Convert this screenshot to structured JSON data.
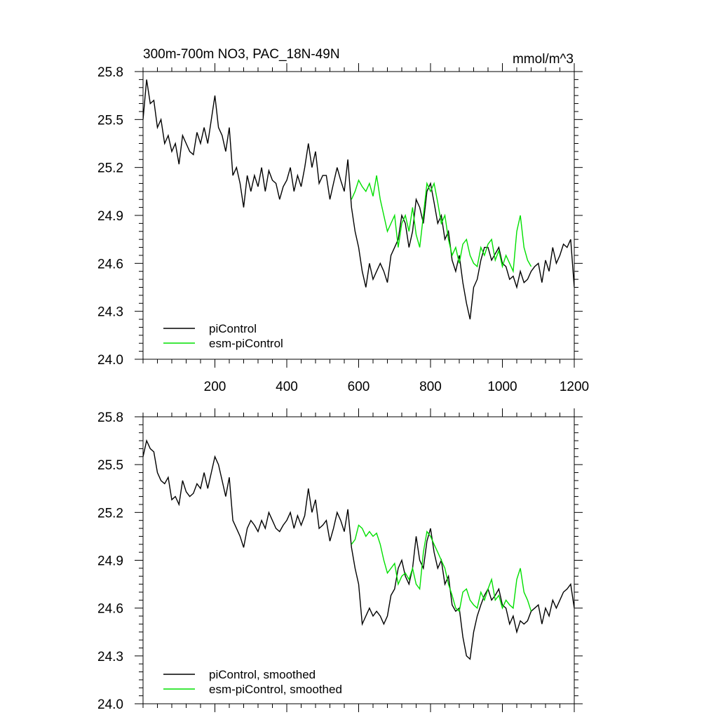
{
  "page": {
    "title": "300m-700m NO3, PAC_18N-49N",
    "units": "mmol/m^3"
  },
  "colors": {
    "picontrol": "#000000",
    "esm_picontrol": "#00e000",
    "axis": "#000000",
    "background": "#ffffff"
  },
  "chart_data": [
    {
      "type": "line",
      "title": "300m-700m NO3, PAC_18N-49N",
      "units_label": "mmol/m^3",
      "xlabel": "",
      "ylabel": "",
      "xlim": [
        0,
        1200
      ],
      "ylim": [
        24.0,
        25.8
      ],
      "x_ticks": [
        200,
        400,
        600,
        800,
        1000,
        1200
      ],
      "x_tick_labels": [
        "200",
        "400",
        "600",
        "800",
        "1000",
        "1200"
      ],
      "y_ticks": [
        24.0,
        24.3,
        24.6,
        24.9,
        25.2,
        25.5,
        25.8
      ],
      "y_tick_labels": [
        "24.0",
        "24.3",
        "24.6",
        "24.9",
        "25.2",
        "25.5",
        "25.8"
      ],
      "grid": false,
      "legend_position": "bottom-left",
      "series": [
        {
          "name": "piControl",
          "color": "#000000",
          "x": [
            0,
            10,
            20,
            30,
            40,
            50,
            60,
            70,
            80,
            90,
            100,
            110,
            120,
            130,
            140,
            150,
            160,
            170,
            180,
            190,
            200,
            210,
            220,
            230,
            240,
            250,
            260,
            270,
            280,
            290,
            300,
            310,
            320,
            330,
            340,
            350,
            360,
            370,
            380,
            390,
            400,
            410,
            420,
            430,
            440,
            450,
            460,
            470,
            480,
            490,
            500,
            510,
            520,
            530,
            540,
            550,
            560,
            570,
            580,
            590,
            600,
            610,
            620,
            630,
            640,
            650,
            660,
            670,
            680,
            690,
            700,
            710,
            720,
            730,
            740,
            750,
            760,
            770,
            780,
            790,
            800,
            810,
            820,
            830,
            840,
            850,
            860,
            870,
            880,
            890,
            900,
            910,
            920,
            930,
            940,
            950,
            960,
            970,
            980,
            990,
            1000,
            1010,
            1020,
            1030,
            1040,
            1050,
            1060,
            1070,
            1080,
            1090,
            1100,
            1110,
            1120,
            1130,
            1140,
            1150,
            1160,
            1170,
            1180,
            1190,
            1200
          ],
          "y": [
            25.5,
            25.75,
            25.6,
            25.62,
            25.45,
            25.5,
            25.35,
            25.4,
            25.3,
            25.35,
            25.22,
            25.4,
            25.35,
            25.3,
            25.28,
            25.42,
            25.35,
            25.45,
            25.35,
            25.5,
            25.65,
            25.45,
            25.4,
            25.3,
            25.45,
            25.15,
            25.2,
            25.1,
            24.95,
            25.15,
            25.05,
            25.15,
            25.08,
            25.2,
            25.05,
            25.18,
            25.12,
            25.1,
            25.0,
            25.08,
            25.12,
            25.2,
            25.05,
            25.15,
            25.08,
            25.2,
            25.35,
            25.2,
            25.3,
            25.1,
            25.15,
            25.15,
            25.0,
            25.1,
            25.2,
            25.12,
            25.05,
            25.25,
            24.95,
            24.8,
            24.7,
            24.55,
            24.45,
            24.6,
            24.5,
            24.55,
            24.6,
            24.55,
            24.48,
            24.65,
            24.7,
            24.75,
            24.9,
            24.85,
            24.7,
            24.8,
            25.0,
            24.95,
            24.85,
            25.05,
            25.1,
            24.98,
            24.85,
            24.9,
            24.75,
            24.8,
            24.62,
            24.55,
            24.65,
            24.48,
            24.35,
            24.25,
            24.45,
            24.5,
            24.62,
            24.7,
            24.7,
            24.62,
            24.66,
            24.7,
            24.6,
            24.58,
            24.5,
            24.52,
            24.45,
            24.55,
            24.48,
            24.5,
            24.55,
            24.58,
            24.6,
            24.48,
            24.62,
            24.55,
            24.7,
            24.6,
            24.65,
            24.72,
            24.7,
            24.75,
            24.45
          ]
        },
        {
          "name": "esm-piControl",
          "color": "#00e000",
          "x": [
            580,
            590,
            600,
            610,
            620,
            630,
            640,
            650,
            660,
            670,
            680,
            690,
            700,
            710,
            720,
            730,
            740,
            750,
            760,
            770,
            780,
            790,
            800,
            810,
            820,
            830,
            840,
            850,
            860,
            870,
            880,
            890,
            900,
            910,
            920,
            930,
            940,
            950,
            960,
            970,
            980,
            990,
            1000,
            1010,
            1020,
            1030,
            1040,
            1050,
            1060,
            1070,
            1080
          ],
          "y": [
            25.0,
            25.05,
            25.12,
            25.08,
            25.05,
            25.1,
            25.02,
            25.15,
            25.0,
            24.9,
            24.8,
            24.85,
            24.9,
            24.7,
            24.85,
            24.9,
            24.8,
            24.95,
            24.78,
            24.7,
            24.9,
            25.1,
            25.05,
            25.1,
            24.98,
            24.85,
            24.9,
            24.75,
            24.65,
            24.7,
            24.6,
            24.72,
            24.75,
            24.65,
            24.6,
            24.58,
            24.7,
            24.65,
            24.72,
            24.75,
            24.62,
            24.68,
            24.58,
            24.65,
            24.6,
            24.55,
            24.8,
            24.9,
            24.7,
            24.62,
            24.58
          ]
        }
      ]
    },
    {
      "type": "line",
      "title": "",
      "xlabel": "",
      "ylabel": "",
      "xlim": [
        0,
        1200
      ],
      "ylim": [
        24.0,
        25.8
      ],
      "x_ticks": [
        200,
        400,
        600,
        800,
        1000,
        1200
      ],
      "x_tick_labels": [],
      "y_ticks": [
        24.0,
        24.3,
        24.6,
        24.9,
        25.2,
        25.5,
        25.8
      ],
      "y_tick_labels": [
        "24.0",
        "24.3",
        "24.6",
        "24.9",
        "25.2",
        "25.5",
        "25.8"
      ],
      "grid": false,
      "legend_position": "bottom-left",
      "series": [
        {
          "name": "piControl, smoothed",
          "color": "#000000",
          "x": [
            0,
            10,
            20,
            30,
            40,
            50,
            60,
            70,
            80,
            90,
            100,
            110,
            120,
            130,
            140,
            150,
            160,
            170,
            180,
            190,
            200,
            210,
            220,
            230,
            240,
            250,
            260,
            270,
            280,
            290,
            300,
            310,
            320,
            330,
            340,
            350,
            360,
            370,
            380,
            390,
            400,
            410,
            420,
            430,
            440,
            450,
            460,
            470,
            480,
            490,
            500,
            510,
            520,
            530,
            540,
            550,
            560,
            570,
            580,
            590,
            600,
            610,
            620,
            630,
            640,
            650,
            660,
            670,
            680,
            690,
            700,
            710,
            720,
            730,
            740,
            750,
            760,
            770,
            780,
            790,
            800,
            810,
            820,
            830,
            840,
            850,
            860,
            870,
            880,
            890,
            900,
            910,
            920,
            930,
            940,
            950,
            960,
            970,
            980,
            990,
            1000,
            1010,
            1020,
            1030,
            1040,
            1050,
            1060,
            1070,
            1080,
            1090,
            1100,
            1110,
            1120,
            1130,
            1140,
            1150,
            1160,
            1170,
            1180,
            1190,
            1200
          ],
          "y": [
            25.55,
            25.65,
            25.6,
            25.58,
            25.45,
            25.4,
            25.38,
            25.42,
            25.28,
            25.3,
            25.25,
            25.4,
            25.33,
            25.3,
            25.32,
            25.38,
            25.35,
            25.45,
            25.35,
            25.45,
            25.55,
            25.5,
            25.4,
            25.3,
            25.42,
            25.15,
            25.1,
            25.05,
            24.98,
            25.1,
            25.15,
            25.12,
            25.08,
            25.15,
            25.1,
            25.2,
            25.15,
            25.1,
            25.08,
            25.12,
            25.15,
            25.2,
            25.1,
            25.18,
            25.12,
            25.18,
            25.35,
            25.2,
            25.28,
            25.1,
            25.12,
            25.15,
            25.02,
            25.1,
            25.2,
            25.15,
            25.08,
            25.22,
            24.98,
            24.85,
            24.75,
            24.5,
            24.55,
            24.6,
            24.55,
            24.58,
            24.55,
            24.5,
            24.55,
            24.68,
            24.72,
            24.85,
            24.9,
            24.8,
            24.75,
            24.85,
            25.05,
            24.9,
            24.85,
            25.02,
            25.1,
            24.95,
            24.85,
            24.9,
            24.75,
            24.8,
            24.62,
            24.58,
            24.6,
            24.42,
            24.3,
            24.28,
            24.45,
            24.55,
            24.62,
            24.68,
            24.72,
            24.65,
            24.68,
            24.72,
            24.62,
            24.6,
            24.5,
            24.55,
            24.45,
            24.52,
            24.5,
            24.52,
            24.58,
            24.6,
            24.62,
            24.5,
            24.6,
            24.55,
            24.65,
            24.6,
            24.65,
            24.7,
            24.72,
            24.75,
            24.6
          ]
        },
        {
          "name": "esm-piControl, smoothed",
          "color": "#00e000",
          "x": [
            580,
            590,
            600,
            610,
            620,
            630,
            640,
            650,
            660,
            670,
            680,
            690,
            700,
            710,
            720,
            730,
            740,
            750,
            760,
            770,
            780,
            790,
            800,
            810,
            820,
            830,
            840,
            850,
            860,
            870,
            880,
            890,
            900,
            910,
            920,
            930,
            940,
            950,
            960,
            970,
            980,
            990,
            1000,
            1010,
            1020,
            1030,
            1040,
            1050,
            1060,
            1070,
            1080
          ],
          "y": [
            25.0,
            25.03,
            25.12,
            25.1,
            25.05,
            25.08,
            25.05,
            25.07,
            25.0,
            24.9,
            24.82,
            24.85,
            24.88,
            24.75,
            24.8,
            24.82,
            24.78,
            24.85,
            24.75,
            24.72,
            24.95,
            25.08,
            25.05,
            25.0,
            24.95,
            24.9,
            24.85,
            24.75,
            24.68,
            24.6,
            24.58,
            24.7,
            24.72,
            24.65,
            24.62,
            24.6,
            24.7,
            24.65,
            24.72,
            24.78,
            24.65,
            24.68,
            24.6,
            24.65,
            24.62,
            24.6,
            24.78,
            24.85,
            24.7,
            24.65,
            24.58
          ]
        }
      ],
      "legend_entries": [
        "piControl, smoothed",
        "esm-piControl, smoothed"
      ]
    }
  ]
}
